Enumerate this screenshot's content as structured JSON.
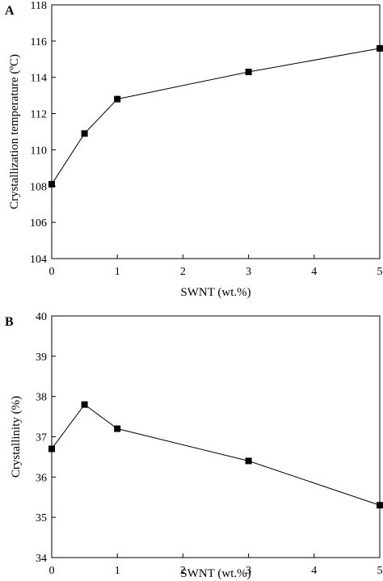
{
  "chart_data": [
    {
      "type": "line",
      "panel_label": "A",
      "x": [
        0,
        0.5,
        1,
        3,
        5
      ],
      "series": [
        {
          "values": [
            108.1,
            110.9,
            112.8,
            114.3,
            115.6
          ]
        }
      ],
      "xlabel": "SWNT (wt.%)",
      "ylabel": "Crystallization temperature (ºC)",
      "xlim": [
        0,
        5
      ],
      "ylim": [
        104,
        118
      ],
      "xticks": [
        "0",
        "1",
        "2",
        "3",
        "4",
        "5"
      ],
      "yticks": [
        "104",
        "106",
        "108",
        "110",
        "112",
        "114",
        "116",
        "118"
      ],
      "grid": false,
      "marker": "square",
      "color": "#000000"
    },
    {
      "type": "line",
      "panel_label": "B",
      "x": [
        0,
        0.5,
        1,
        3,
        5
      ],
      "series": [
        {
          "values": [
            36.7,
            37.8,
            37.2,
            36.4,
            35.3
          ]
        }
      ],
      "xlabel": "SWNT (wt.%)",
      "ylabel": "Crystallinity (%)",
      "xlim": [
        0,
        5
      ],
      "ylim": [
        34,
        40
      ],
      "xticks": [
        "0",
        "1",
        "2",
        "3",
        "4",
        "5"
      ],
      "yticks": [
        "34",
        "35",
        "36",
        "37",
        "38",
        "39",
        "40"
      ],
      "grid": false,
      "marker": "square",
      "color": "#000000"
    }
  ]
}
